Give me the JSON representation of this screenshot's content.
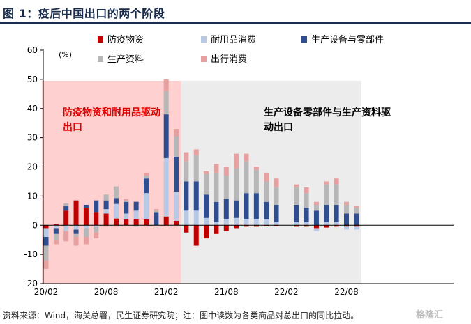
{
  "header": {
    "title": "图 1：疫后中国出口的两个阶段"
  },
  "footer": {
    "source": "资料来源：Wind，海关总署，民生证券研究院；注：图中读数为各类商品对总出口的同比拉动。",
    "watermark": "格隆汇"
  },
  "colors": {
    "epidemic": "#c00000",
    "durables": "#b8c9e6",
    "equipment": "#2e4e8f",
    "materials": "#b7b7b7",
    "travel": "#e6a0a0",
    "phase1_bg": "#ffd0d0",
    "phase2_bg": "#ececec"
  },
  "chart_data": {
    "type": "bar",
    "stacked": true,
    "ylabel": "(%)",
    "ylim": [
      -20,
      60
    ],
    "yticks": [
      -20,
      -10,
      0,
      10,
      20,
      30,
      40,
      50,
      60
    ],
    "xticks": [
      "20/02",
      "20/08",
      "21/02",
      "21/08",
      "22/02",
      "22/08"
    ],
    "xtick_months": [
      "2020-02",
      "2020-08",
      "2021-02",
      "2021-08",
      "2022-02",
      "2022-08"
    ],
    "legend_position": "top",
    "annotations": [
      {
        "text": "防疫物资和耐用品驱动\n出口",
        "color": "#e00000"
      },
      {
        "text": "生产设备零部件与生产资料驱\n动出口",
        "color": "#000000"
      }
    ],
    "phases": [
      {
        "from": "2020-02",
        "to": "2021-03",
        "color": "phase1"
      },
      {
        "from": "2021-04",
        "to": "2022-09",
        "color": "phase2"
      }
    ],
    "categories": [
      "2020-02",
      "2020-03",
      "2020-04",
      "2020-05",
      "2020-06",
      "2020-07",
      "2020-08",
      "2020-09",
      "2020-10",
      "2020-11",
      "2020-12",
      "2021-01",
      "2021-02",
      "2021-03",
      "2021-04",
      "2021-05",
      "2021-06",
      "2021-07",
      "2021-08",
      "2021-09",
      "2021-10",
      "2021-11",
      "2021-12",
      "2022-01",
      "2022-02",
      "2022-03",
      "2022-04",
      "2022-05",
      "2022-06",
      "2022-07",
      "2022-08",
      "2022-09"
    ],
    "series": [
      {
        "name": "防疫物资",
        "key": "epidemic",
        "values": [
          -1,
          0.3,
          5,
          8.5,
          6,
          4.5,
          4,
          2.3,
          2,
          2,
          2,
          0,
          3,
          1.5,
          -2.5,
          -7,
          -4.5,
          -3,
          -2,
          -1,
          -0.5,
          -0.5,
          -0.3,
          -0.3,
          null,
          -0.5,
          -0.5,
          -1,
          -0.8,
          -0.5,
          -0.5,
          -0.5
        ]
      },
      {
        "name": "耐用品消费",
        "key": "durables",
        "values": [
          -3,
          -1,
          -2,
          -1.5,
          -1,
          -0.5,
          1.5,
          5,
          2,
          3,
          9,
          0,
          20,
          10,
          5,
          5,
          2.5,
          1,
          2,
          2.5,
          2,
          2,
          2,
          1,
          null,
          1,
          1,
          -1,
          1,
          1,
          -1,
          -1
        ]
      },
      {
        "name": "生产设备与零部件",
        "key": "equipment",
        "values": [
          -3,
          -2,
          1.5,
          -1.5,
          1,
          4,
          3,
          2,
          4,
          3,
          5,
          4.5,
          15,
          12,
          10,
          10,
          8,
          7,
          7,
          6,
          9,
          9,
          6,
          6,
          null,
          6,
          5,
          5,
          6,
          6,
          4,
          4
        ]
      },
      {
        "name": "生产资料",
        "key": "materials",
        "values": [
          -5,
          -2,
          1,
          -1,
          -3,
          -2,
          2,
          4,
          0.5,
          -0.5,
          1,
          0.5,
          8,
          7,
          7,
          9,
          7,
          10,
          8,
          11,
          11,
          8,
          7,
          6,
          null,
          6,
          5,
          2,
          7,
          7,
          3,
          2
        ]
      },
      {
        "name": "出行消费",
        "key": "travel",
        "values": [
          -3,
          -1.5,
          -3.5,
          -3,
          -2.5,
          -2,
          -0.5,
          -0.5,
          0.5,
          0.3,
          1,
          0.5,
          4,
          2.5,
          3,
          2,
          1,
          3,
          3,
          5,
          2.5,
          1,
          3,
          3,
          null,
          1,
          2,
          1,
          1,
          2,
          1,
          0.5
        ]
      }
    ]
  }
}
